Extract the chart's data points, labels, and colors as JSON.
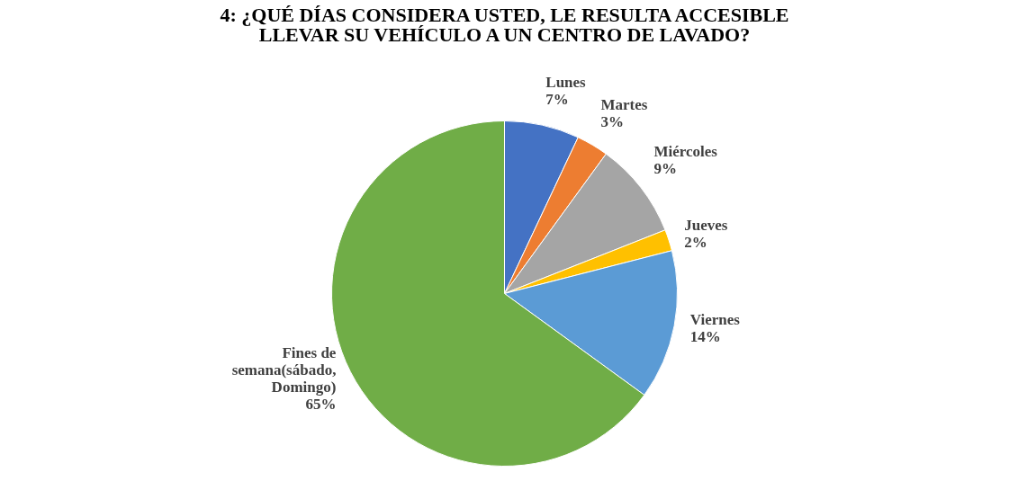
{
  "chart_data": {
    "type": "pie",
    "title": "4: ¿QUÉ DÍAS CONSIDERA USTED, LE RESULTA ACCESIBLE LLEVAR SU VEHÍCULO A UN CENTRO DE LAVADO?",
    "categories": [
      "Lunes",
      "Martes",
      "Miércoles",
      "Jueves",
      "Viernes",
      "Fines de semana(sábado, Domingo)"
    ],
    "values": [
      7,
      3,
      9,
      2,
      14,
      65
    ],
    "value_labels": [
      "7%",
      "3%",
      "9%",
      "2%",
      "14%",
      "65%"
    ],
    "colors": [
      "#4472c4",
      "#ed7d31",
      "#a5a5a5",
      "#ffc000",
      "#5b9bd5",
      "#70ad47"
    ],
    "legend": false
  }
}
